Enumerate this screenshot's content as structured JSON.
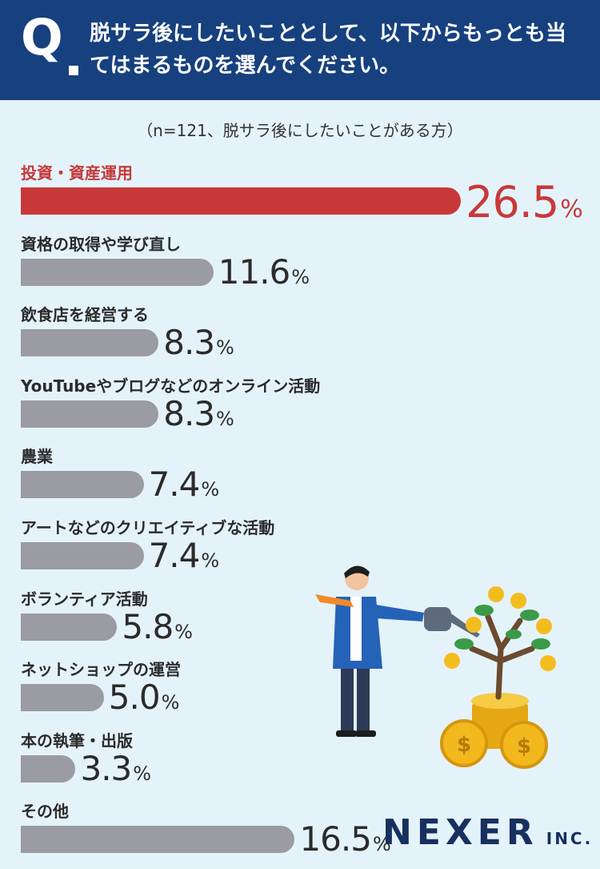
{
  "header": {
    "q_mark": "Q",
    "question": "脱サラ後にしたいこととして、以下からもっとも当てはまるものを選んでください。"
  },
  "note": "（n=121、脱サラ後にしたいことがある方）",
  "chart_data": {
    "type": "bar",
    "orientation": "horizontal",
    "categories": [
      "投資・資産運用",
      "資格の取得や学び直し",
      "飲食店を経営する",
      "YouTubeやブログなどのオンライン活動",
      "農業",
      "アートなどのクリエイティブな活動",
      "ボランティア活動",
      "ネットショップの運営",
      "本の執筆・出版",
      "その他"
    ],
    "values": [
      26.5,
      11.6,
      8.3,
      8.3,
      7.4,
      7.4,
      5.8,
      5.0,
      3.3,
      16.5
    ],
    "value_suffix": "%",
    "highlight_index": 0,
    "colors": {
      "highlight": "#c73939",
      "default": "#9b9ba3",
      "highlight_text": "#c73939"
    }
  },
  "logo": {
    "main": "NEXER",
    "sub": "INC."
  }
}
